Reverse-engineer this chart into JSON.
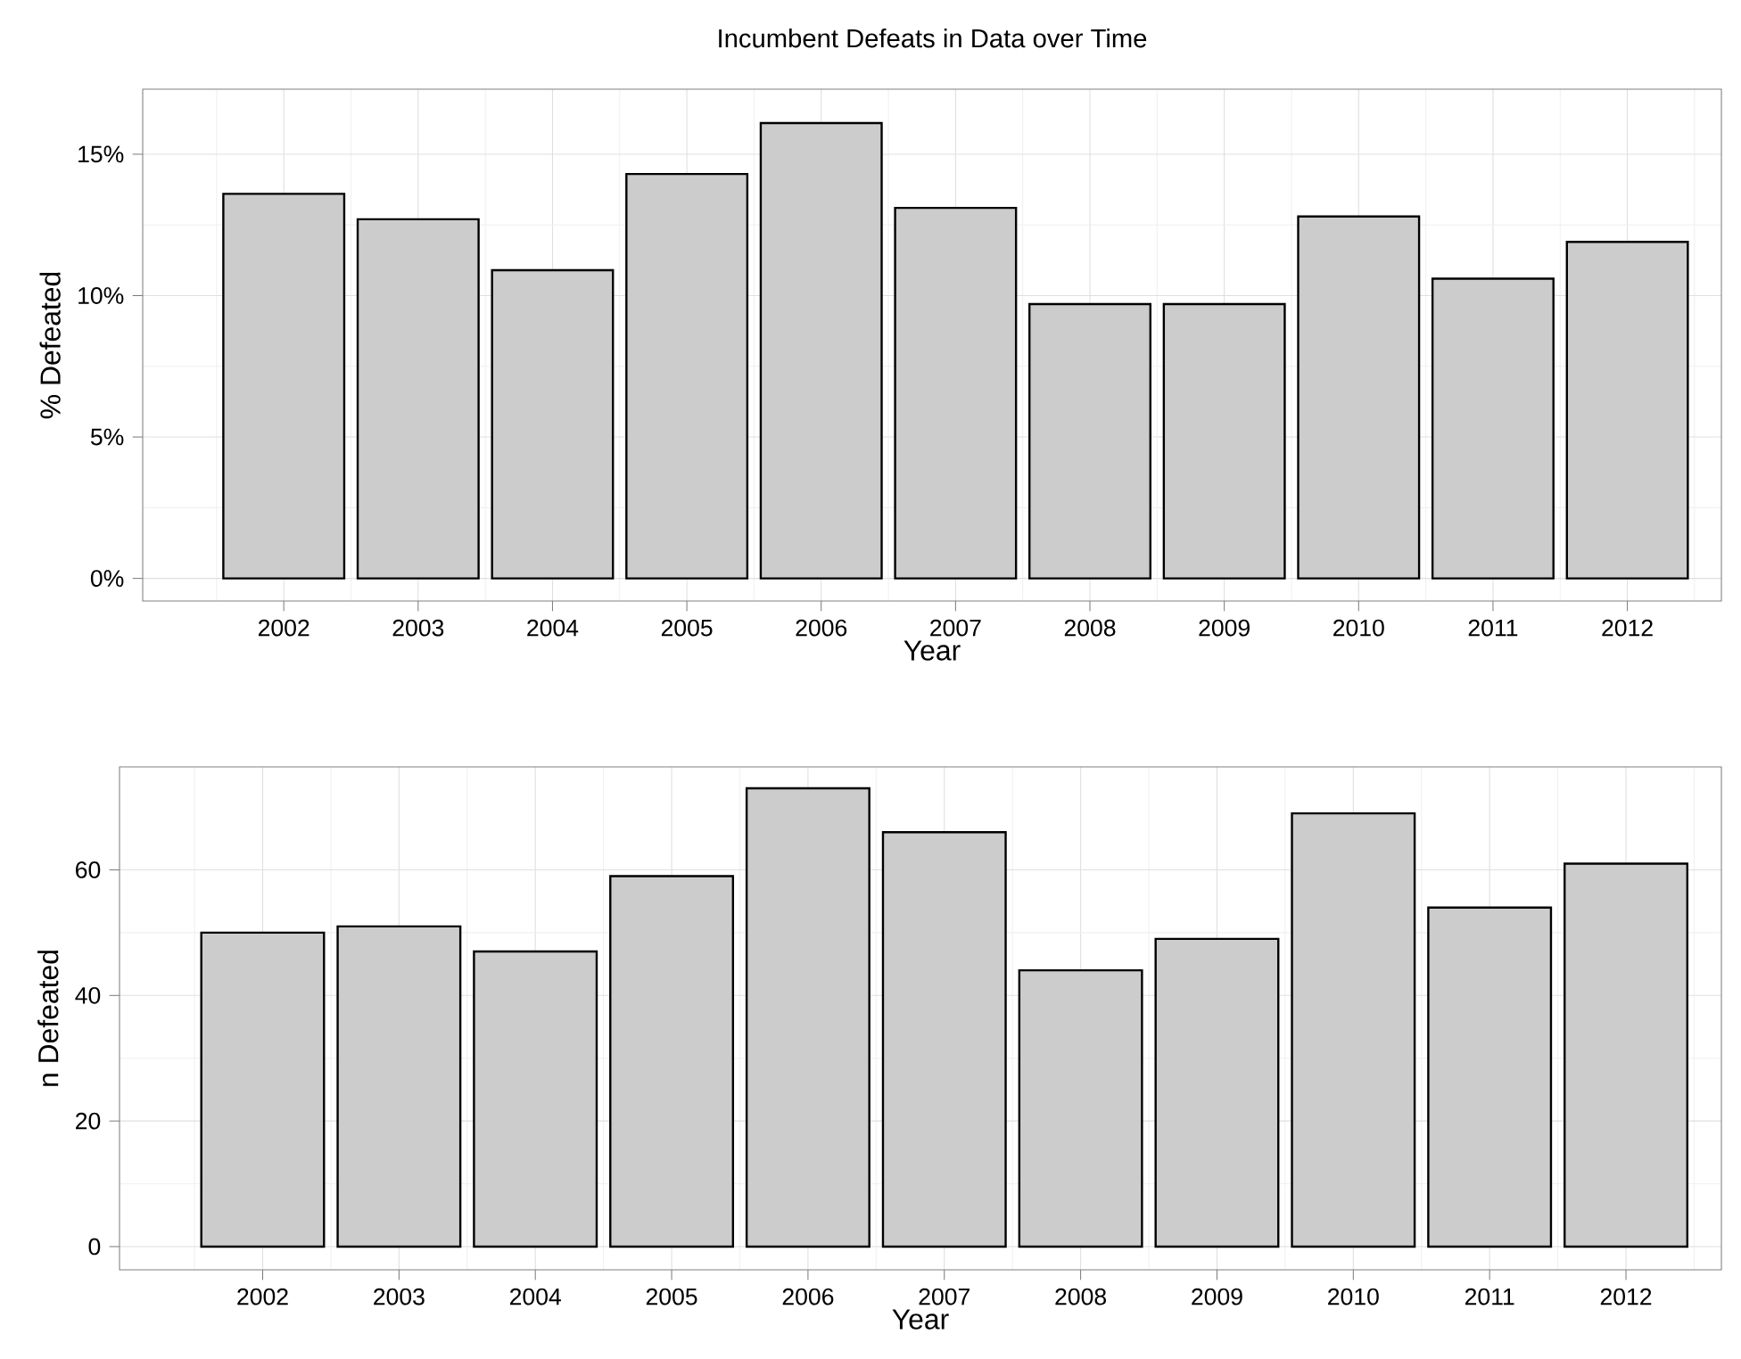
{
  "chart_data": [
    {
      "type": "bar",
      "title": "Incumbent Defeats in Data over Time",
      "xlabel": "Year",
      "ylabel": "% Defeated",
      "categories": [
        "2002",
        "2003",
        "2004",
        "2005",
        "2006",
        "2007",
        "2008",
        "2009",
        "2010",
        "2011",
        "2012"
      ],
      "values": [
        13.6,
        12.7,
        10.9,
        14.3,
        16.1,
        13.1,
        9.7,
        9.7,
        12.8,
        10.6,
        11.9
      ],
      "color": "#cccccc",
      "ylim": [
        -0.8,
        17.3
      ],
      "yticks": [
        {
          "value": 0,
          "label": "0%"
        },
        {
          "value": 5,
          "label": "5%"
        },
        {
          "value": 10,
          "label": "10%"
        },
        {
          "value": 15,
          "label": "15%"
        }
      ],
      "grid": true
    },
    {
      "type": "bar",
      "xlabel": "Year",
      "ylabel": "n Defeated",
      "categories": [
        "2002",
        "2003",
        "2004",
        "2005",
        "2006",
        "2007",
        "2008",
        "2009",
        "2010",
        "2011",
        "2012"
      ],
      "values": [
        50,
        51,
        47,
        59,
        73,
        66,
        44,
        49,
        69,
        54,
        61
      ],
      "color": "#cccccc",
      "ylim": [
        -3.7,
        76.4
      ],
      "yticks": [
        0,
        20,
        40,
        60
      ],
      "grid": true
    }
  ]
}
